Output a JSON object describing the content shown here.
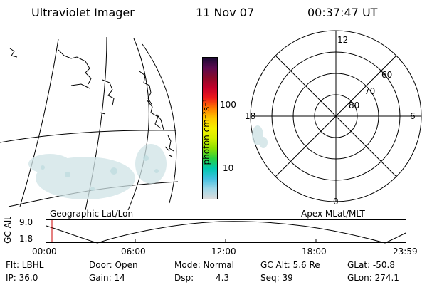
{
  "header": {
    "instrument": "Ultraviolet Imager",
    "date": "11 Nov 07",
    "time": "00:37:47 UT"
  },
  "colorbar": {
    "unit": "photon cm⁻²s⁻¹",
    "ticks": [
      "100",
      "10"
    ],
    "colors": [
      "#1a0a33",
      "#5b0a4f",
      "#8a0a2a",
      "#c4002a",
      "#ee1a1a",
      "#ff7a00",
      "#ffc800",
      "#f5f000",
      "#d4f000",
      "#8ce000",
      "#28d040",
      "#00c8b0",
      "#40c0e0",
      "#a0d8e8",
      "#dcdcdc"
    ]
  },
  "polar": {
    "mlt_labels": {
      "top": "12",
      "right": "6",
      "bottom": "0",
      "left": "18"
    },
    "lat_labels": [
      "60",
      "70",
      "80"
    ]
  },
  "orbit": {
    "ylabel": "GC Alt",
    "yticks": [
      "9.0",
      "1.8"
    ],
    "left_caption": "Geographic Lat/Lon",
    "right_caption": "Apex MLat/MLT",
    "xticks": [
      "00:00",
      "06:00",
      "12:00",
      "18:00",
      "23:59"
    ]
  },
  "status": {
    "filter": "Flt: LBHL",
    "ip": "IP: 36.0",
    "door": "Door: Open",
    "gain": "Gain: 14",
    "mode": "Mode: Normal",
    "dsp_label": "Dsp:",
    "dsp_value": "4.3",
    "gc_alt": "GC Alt: 5.6 Re",
    "seq": "Seq: 39",
    "glat": "GLat: -50.8",
    "glon": "GLon: 274.1"
  }
}
